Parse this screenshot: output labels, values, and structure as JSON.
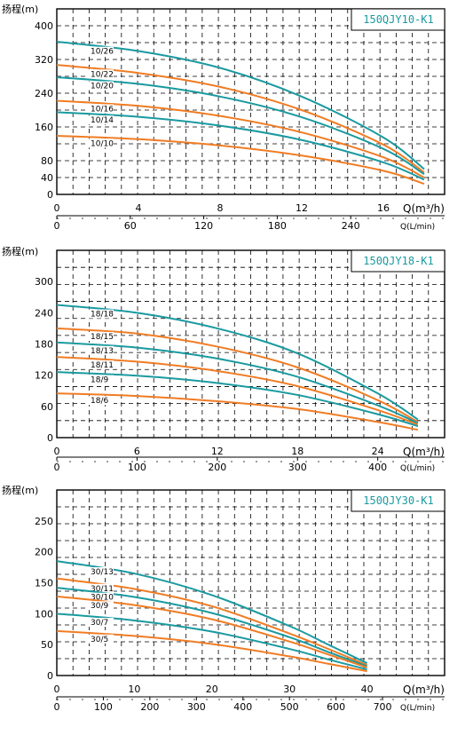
{
  "chart_data": [
    {
      "type": "line",
      "model": "150QJY10-K1",
      "ylabel": "扬程(m)",
      "xlabel": "Q(m³/h)",
      "xlabel_flow": "Q(L/min)",
      "ylim": [
        0,
        440
      ],
      "xlim": [
        0,
        19
      ],
      "yticks": [
        "0",
        "40",
        "80",
        "160",
        "240",
        "320",
        "400"
      ],
      "ytick_values": [
        0,
        40,
        80,
        160,
        240,
        320,
        400
      ],
      "xticks": [
        "0",
        "4",
        "8",
        "12",
        "16"
      ],
      "xtick_values": [
        0,
        4,
        8,
        12,
        16
      ],
      "flow_ticks": [
        "0",
        "60",
        "120",
        "180",
        "240"
      ],
      "flow_tick_values": [
        0,
        60,
        120,
        180,
        240
      ],
      "flow_factor": 16.667,
      "series": [
        {
          "name": "10/26",
          "color": "#1a9aa0",
          "x": [
            0,
            4,
            8,
            12,
            16,
            18
          ],
          "y": [
            362,
            340,
            300,
            232,
            135,
            60
          ]
        },
        {
          "name": "10/22",
          "color": "#f07c24",
          "x": [
            0,
            4,
            8,
            12,
            16,
            18
          ],
          "y": [
            307,
            288,
            255,
            200,
            118,
            52
          ]
        },
        {
          "name": "10/20",
          "color": "#1a9aa0",
          "x": [
            0,
            4,
            8,
            12,
            16,
            18
          ],
          "y": [
            278,
            262,
            232,
            183,
            108,
            48
          ]
        },
        {
          "name": "10/16",
          "color": "#f07c24",
          "x": [
            0,
            4,
            8,
            12,
            16,
            18
          ],
          "y": [
            222,
            210,
            186,
            147,
            88,
            40
          ]
        },
        {
          "name": "10/14",
          "color": "#1a9aa0",
          "x": [
            0,
            4,
            8,
            12,
            16,
            18
          ],
          "y": [
            195,
            184,
            163,
            129,
            76,
            35
          ]
        },
        {
          "name": "10/10",
          "color": "#f07c24",
          "x": [
            0,
            4,
            8,
            12,
            16,
            18
          ],
          "y": [
            139,
            131,
            116,
            92,
            56,
            25
          ]
        }
      ]
    },
    {
      "type": "line",
      "model": "150QJY18-K1",
      "ylabel": "扬程(m)",
      "xlabel": "Q(m³/h)",
      "xlabel_flow": "Q(L/min)",
      "ylim": [
        0,
        360
      ],
      "xlim": [
        0,
        29
      ],
      "yticks": [
        "0",
        "60",
        "120",
        "180",
        "240",
        "300"
      ],
      "ytick_values": [
        0,
        60,
        120,
        180,
        240,
        300
      ],
      "xticks": [
        "0",
        "6",
        "12",
        "18",
        "24"
      ],
      "xtick_values": [
        0,
        6,
        12,
        18,
        24
      ],
      "flow_ticks": [
        "0",
        "100",
        "200",
        "300",
        "400"
      ],
      "flow_tick_values": [
        0,
        100,
        200,
        300,
        400
      ],
      "flow_factor": 16.667,
      "series": [
        {
          "name": "18/18",
          "color": "#1a9aa0",
          "x": [
            0,
            6,
            12,
            18,
            24,
            27
          ],
          "y": [
            255,
            240,
            210,
            162,
            85,
            35
          ]
        },
        {
          "name": "18/15",
          "color": "#f07c24",
          "x": [
            0,
            6,
            12,
            18,
            24,
            27
          ],
          "y": [
            210,
            200,
            175,
            135,
            72,
            30
          ]
        },
        {
          "name": "18/13",
          "color": "#1a9aa0",
          "x": [
            0,
            6,
            12,
            18,
            24,
            27
          ],
          "y": [
            183,
            173,
            152,
            117,
            62,
            28
          ]
        },
        {
          "name": "18/11",
          "color": "#f07c24",
          "x": [
            0,
            6,
            12,
            18,
            24,
            27
          ],
          "y": [
            155,
            146,
            128,
            99,
            53,
            25
          ]
        },
        {
          "name": "18/9",
          "color": "#1a9aa0",
          "x": [
            0,
            6,
            12,
            18,
            24,
            27
          ],
          "y": [
            126,
            119,
            105,
            82,
            45,
            22
          ]
        },
        {
          "name": "18/6",
          "color": "#f07c24",
          "x": [
            0,
            6,
            12,
            18,
            24,
            27
          ],
          "y": [
            85,
            80,
            70,
            55,
            30,
            15
          ]
        }
      ]
    },
    {
      "type": "line",
      "model": "150QJY30-K1",
      "ylabel": "扬程(m)",
      "xlabel": "Q(m³/h)",
      "xlabel_flow": "Q(L/min)",
      "ylim": [
        0,
        300
      ],
      "xlim": [
        0,
        50
      ],
      "yticks": [
        "0",
        "50",
        "100",
        "150",
        "200",
        "250"
      ],
      "ytick_values": [
        0,
        50,
        100,
        150,
        200,
        250
      ],
      "xticks": [
        "0",
        "10",
        "20",
        "30",
        "40"
      ],
      "xtick_values": [
        0,
        10,
        20,
        30,
        40
      ],
      "flow_ticks": [
        "0",
        "100",
        "200",
        "300",
        "400",
        "500",
        "600",
        "700"
      ],
      "flow_tick_values": [
        0,
        100,
        200,
        300,
        400,
        500,
        600,
        700
      ],
      "flow_factor": 16.667,
      "series": [
        {
          "name": "30/13",
          "color": "#1a9aa0",
          "x": [
            0,
            10,
            20,
            30,
            35,
            40
          ],
          "y": [
            185,
            165,
            130,
            80,
            50,
            20
          ]
        },
        {
          "name": "30/11",
          "color": "#f07c24",
          "x": [
            0,
            10,
            20,
            30,
            35,
            40
          ],
          "y": [
            157,
            140,
            112,
            68,
            43,
            17
          ]
        },
        {
          "name": "30/10",
          "color": "#1a9aa0",
          "x": [
            0,
            10,
            20,
            30,
            35,
            40
          ],
          "y": [
            142,
            127,
            101,
            62,
            38,
            15
          ]
        },
        {
          "name": "30/9",
          "color": "#f07c24",
          "x": [
            0,
            10,
            20,
            30,
            35,
            40
          ],
          "y": [
            128,
            114,
            91,
            55,
            34,
            13
          ]
        },
        {
          "name": "30/7",
          "color": "#1a9aa0",
          "x": [
            0,
            10,
            20,
            30,
            35,
            40
          ],
          "y": [
            100,
            89,
            71,
            43,
            26,
            10
          ]
        },
        {
          "name": "30/5",
          "color": "#f07c24",
          "x": [
            0,
            10,
            20,
            30,
            35,
            40
          ],
          "y": [
            72,
            64,
            51,
            31,
            19,
            7
          ]
        }
      ]
    }
  ]
}
